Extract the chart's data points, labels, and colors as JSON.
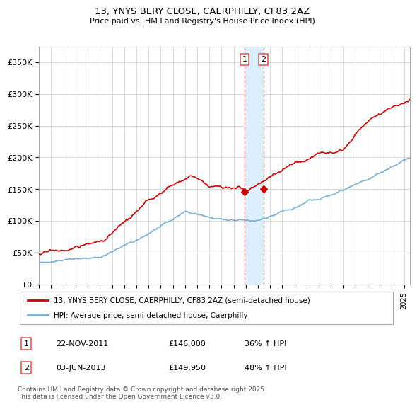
{
  "title": "13, YNYS BERY CLOSE, CAERPHILLY, CF83 2AZ",
  "subtitle": "Price paid vs. HM Land Registry's House Price Index (HPI)",
  "legend_line1": "13, YNYS BERY CLOSE, CAERPHILLY, CF83 2AZ (semi-detached house)",
  "legend_line2": "HPI: Average price, semi-detached house, Caerphilly",
  "footer": "Contains HM Land Registry data © Crown copyright and database right 2025.\nThis data is licensed under the Open Government Licence v3.0.",
  "sale1_label": "1",
  "sale1_date": "22-NOV-2011",
  "sale1_price": "£146,000",
  "sale1_hpi": "36% ↑ HPI",
  "sale1_year": 2011.9,
  "sale1_value": 146000,
  "sale2_label": "2",
  "sale2_date": "03-JUN-2013",
  "sale2_price": "£149,950",
  "sale2_hpi": "48% ↑ HPI",
  "sale2_year": 2013.45,
  "sale2_value": 149950,
  "hpi_color": "#7aadd4",
  "price_color": "#cc0000",
  "vline_color": "#e06060",
  "highlight_color": "#ddeeff",
  "ylim": [
    0,
    375000
  ],
  "yticks": [
    0,
    50000,
    100000,
    150000,
    200000,
    250000,
    300000,
    350000
  ],
  "ytick_labels": [
    "£0",
    "£50K",
    "£100K",
    "£150K",
    "£200K",
    "£250K",
    "£300K",
    "£350K"
  ],
  "xlim_start": 1995,
  "xlim_end": 2025.5,
  "background_color": "#ffffff",
  "grid_color": "#cccccc"
}
